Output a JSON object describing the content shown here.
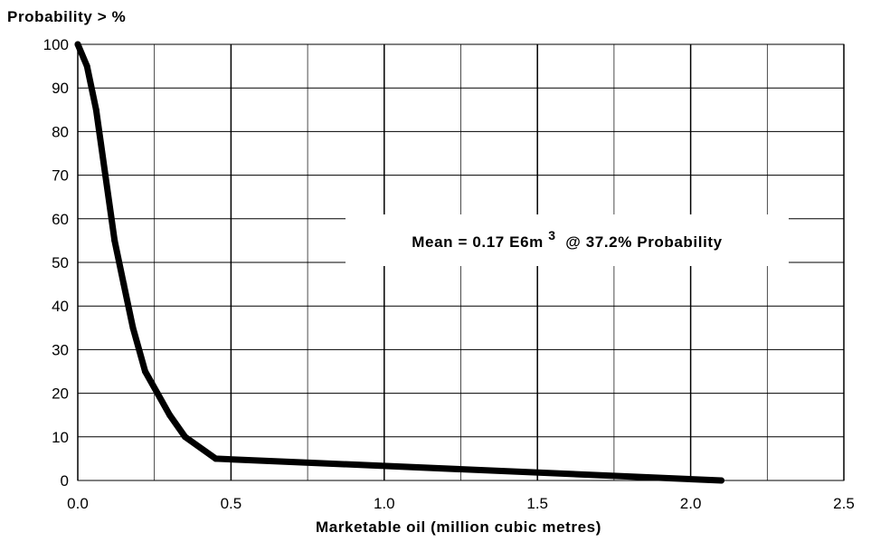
{
  "chart_data": {
    "type": "line",
    "ylabel": "Probability > %",
    "xlabel": "Marketable oil (million cubic metres)",
    "xlim": [
      0,
      2.5
    ],
    "ylim": [
      0,
      100
    ],
    "x_ticks": [
      0.0,
      0.5,
      1.0,
      1.5,
      2.0,
      2.5
    ],
    "x_tick_labels": [
      "0.0",
      "0.5",
      "1.0",
      "1.5",
      "2.0",
      "2.5"
    ],
    "y_ticks": [
      0,
      10,
      20,
      30,
      40,
      50,
      60,
      70,
      80,
      90,
      100
    ],
    "y_tick_labels": [
      "0",
      "10",
      "20",
      "30",
      "40",
      "50",
      "60",
      "70",
      "80",
      "90",
      "100"
    ],
    "x_minor_grid": [
      0.25,
      0.75,
      1.25,
      1.75,
      2.25
    ],
    "grid": true,
    "series": [
      {
        "x": [
          0.0,
          0.03,
          0.06,
          0.09,
          0.12,
          0.15,
          0.18,
          0.22,
          0.26,
          0.3,
          0.35,
          0.45,
          2.1
        ],
        "y": [
          100,
          95,
          85,
          70,
          55,
          45,
          35,
          25,
          20,
          15,
          10,
          5,
          0
        ]
      }
    ],
    "annotation": {
      "prefix": "Mean = 0.17 E6m",
      "superscript": "3",
      "suffix": " @ 37.2% Probability"
    },
    "colors": {
      "line": "#000000",
      "grid": "#000000",
      "background": "#ffffff"
    }
  }
}
